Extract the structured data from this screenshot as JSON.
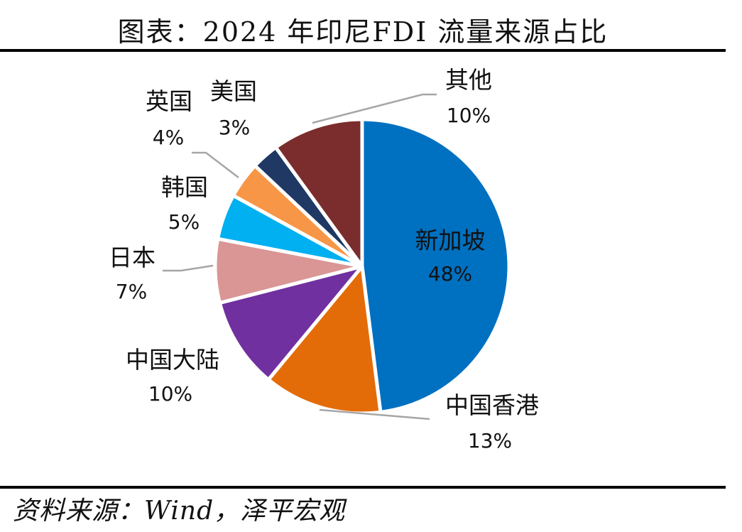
{
  "title": "图表：2024 年印尼FDI 流量来源占比",
  "source": "资料来源：Wind，泽平宏观",
  "chart_data": {
    "type": "pie",
    "slices": [
      {
        "label": "新加坡",
        "value": 48,
        "value_label": "48%",
        "color": "#0070C0"
      },
      {
        "label": "中国香港",
        "value": 13,
        "value_label": "13%",
        "color": "#E36C09"
      },
      {
        "label": "中国大陆",
        "value": 10,
        "value_label": "10%",
        "color": "#7030A0"
      },
      {
        "label": "日本",
        "value": 7,
        "value_label": "7%",
        "color": "#D99694"
      },
      {
        "label": "韩国",
        "value": 5,
        "value_label": "5%",
        "color": "#00B0F0"
      },
      {
        "label": "英国",
        "value": 4,
        "value_label": "4%",
        "color": "#F79646"
      },
      {
        "label": "美国",
        "value": 3,
        "value_label": "3%",
        "color": "#1F3864"
      },
      {
        "label": "其他",
        "value": 10,
        "value_label": "10%",
        "color": "#7B2C2C"
      }
    ]
  }
}
